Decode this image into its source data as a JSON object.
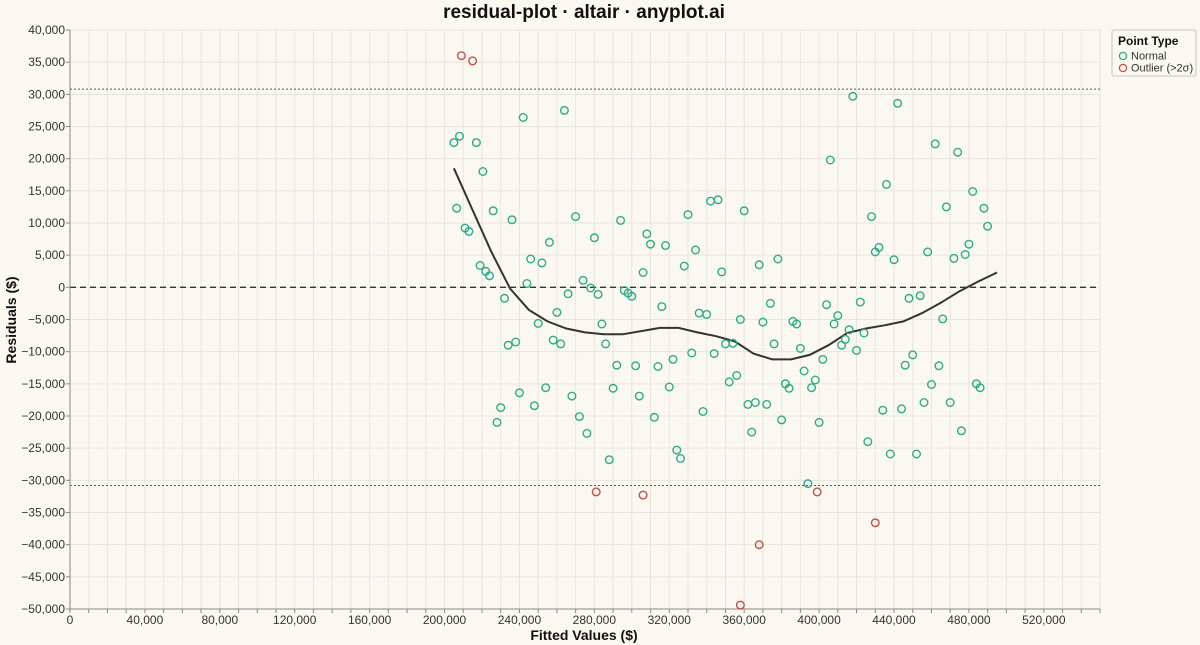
{
  "chart_data": {
    "type": "scatter",
    "title": "residual-plot · altair · anyplot.ai",
    "xlabel": "Fitted Values ($)",
    "ylabel": "Residuals ($)",
    "xlim": [
      0,
      550000
    ],
    "ylim": [
      -50000,
      40000
    ],
    "x_ticks": [
      0,
      40000,
      80000,
      120000,
      160000,
      200000,
      240000,
      280000,
      320000,
      360000,
      400000,
      440000,
      480000,
      520000
    ],
    "x_tick_labels": [
      "0",
      "40,000",
      "80,000",
      "120,000",
      "160,000",
      "200,000",
      "240,000",
      "280,000",
      "320,000",
      "360,000",
      "400,000",
      "440,000",
      "480,000",
      "520,000"
    ],
    "y_ticks": [
      40000,
      35000,
      30000,
      25000,
      20000,
      15000,
      10000,
      5000,
      0,
      -5000,
      -10000,
      -15000,
      -20000,
      -25000,
      -30000,
      -35000,
      -40000,
      -45000,
      -50000
    ],
    "y_tick_labels": [
      "40,000",
      "35,000",
      "30,000",
      "25,000",
      "20,000",
      "15,000",
      "10,000",
      "5,000",
      "0",
      "−5,000",
      "−10,000",
      "−15,000",
      "−20,000",
      "−25,000",
      "−30,000",
      "−35,000",
      "−40,000",
      "−45,000",
      "−50,000"
    ],
    "grid": true,
    "reference_lines": {
      "zero": 0,
      "upper_2sigma": 30800,
      "lower_2sigma": -30800
    },
    "legend": {
      "title": "Point Type",
      "position": "top-right",
      "entries": [
        {
          "label": "Normal",
          "color": "#2bab86"
        },
        {
          "label": "Outlier (>2σ)",
          "color": "#c0504d"
        }
      ]
    },
    "series": [
      {
        "name": "Normal",
        "color": "#2bab86",
        "points": [
          [
            205000,
            22500
          ],
          [
            206500,
            12300
          ],
          [
            208000,
            23500
          ],
          [
            211000,
            9200
          ],
          [
            213000,
            8700
          ],
          [
            217000,
            22500
          ],
          [
            219000,
            3400
          ],
          [
            220500,
            18000
          ],
          [
            222000,
            2500
          ],
          [
            224000,
            1800
          ],
          [
            226000,
            11900
          ],
          [
            228000,
            -21000
          ],
          [
            230000,
            -18700
          ],
          [
            232000,
            -1700
          ],
          [
            234000,
            -9000
          ],
          [
            236000,
            10500
          ],
          [
            238000,
            -8500
          ],
          [
            240000,
            -16400
          ],
          [
            242000,
            26400
          ],
          [
            244000,
            600
          ],
          [
            246000,
            4400
          ],
          [
            248000,
            -18400
          ],
          [
            250000,
            -5600
          ],
          [
            252000,
            3800
          ],
          [
            254000,
            -15600
          ],
          [
            256000,
            7000
          ],
          [
            258000,
            -8200
          ],
          [
            260000,
            -3900
          ],
          [
            262000,
            -8800
          ],
          [
            264000,
            27500
          ],
          [
            266000,
            -1000
          ],
          [
            268000,
            -16900
          ],
          [
            270000,
            11000
          ],
          [
            272000,
            -20100
          ],
          [
            274000,
            1100
          ],
          [
            276000,
            -22700
          ],
          [
            278000,
            -100
          ],
          [
            280000,
            7700
          ],
          [
            282000,
            -1100
          ],
          [
            284000,
            -5700
          ],
          [
            286000,
            -8800
          ],
          [
            288000,
            -26800
          ],
          [
            290000,
            -15700
          ],
          [
            292000,
            -12100
          ],
          [
            294000,
            10400
          ],
          [
            296000,
            -500
          ],
          [
            298000,
            -900
          ],
          [
            300000,
            -1400
          ],
          [
            302000,
            -12200
          ],
          [
            304000,
            -16900
          ],
          [
            306000,
            2300
          ],
          [
            308000,
            8300
          ],
          [
            310000,
            6700
          ],
          [
            312000,
            -20200
          ],
          [
            314000,
            -12300
          ],
          [
            316000,
            -3000
          ],
          [
            318000,
            6500
          ],
          [
            320000,
            -15500
          ],
          [
            322000,
            -11200
          ],
          [
            324000,
            -25300
          ],
          [
            326000,
            -26600
          ],
          [
            328000,
            3300
          ],
          [
            330000,
            11300
          ],
          [
            332000,
            -10200
          ],
          [
            334000,
            5800
          ],
          [
            336000,
            -4000
          ],
          [
            338000,
            -19300
          ],
          [
            340000,
            -4200
          ],
          [
            342000,
            13400
          ],
          [
            344000,
            -10300
          ],
          [
            346000,
            13600
          ],
          [
            348000,
            2400
          ],
          [
            350000,
            -8800
          ],
          [
            352000,
            -14700
          ],
          [
            354000,
            -8700
          ],
          [
            356000,
            -13700
          ],
          [
            358000,
            -5000
          ],
          [
            360000,
            11900
          ],
          [
            362000,
            -18200
          ],
          [
            364000,
            -22500
          ],
          [
            366000,
            -17900
          ],
          [
            368000,
            3500
          ],
          [
            370000,
            -5400
          ],
          [
            372000,
            -18200
          ],
          [
            374000,
            -2500
          ],
          [
            376000,
            -8800
          ],
          [
            378000,
            4400
          ],
          [
            380000,
            -20600
          ],
          [
            382000,
            -15000
          ],
          [
            384000,
            -15700
          ],
          [
            386000,
            -5300
          ],
          [
            388000,
            -5700
          ],
          [
            390000,
            -9500
          ],
          [
            392000,
            -13000
          ],
          [
            394000,
            -30500
          ],
          [
            396000,
            -15600
          ],
          [
            398000,
            -14400
          ],
          [
            400000,
            -21000
          ],
          [
            402000,
            -11200
          ],
          [
            404000,
            -2700
          ],
          [
            406000,
            19800
          ],
          [
            408000,
            -5700
          ],
          [
            410000,
            -4400
          ],
          [
            412000,
            -9000
          ],
          [
            414000,
            -8100
          ],
          [
            416000,
            -6600
          ],
          [
            418000,
            29700
          ],
          [
            420000,
            -9800
          ],
          [
            422000,
            -2300
          ],
          [
            424000,
            -7100
          ],
          [
            426000,
            -24000
          ],
          [
            428000,
            11000
          ],
          [
            430000,
            5500
          ],
          [
            432000,
            6200
          ],
          [
            434000,
            -19100
          ],
          [
            436000,
            16000
          ],
          [
            438000,
            -25900
          ],
          [
            440000,
            4300
          ],
          [
            442000,
            28600
          ],
          [
            444000,
            -18900
          ],
          [
            446000,
            -12100
          ],
          [
            448000,
            -1700
          ],
          [
            450000,
            -10500
          ],
          [
            452000,
            -25900
          ],
          [
            454000,
            -1300
          ],
          [
            456000,
            -17900
          ],
          [
            458000,
            5500
          ],
          [
            460000,
            -15100
          ],
          [
            462000,
            22300
          ],
          [
            464000,
            -12200
          ],
          [
            466000,
            -4900
          ],
          [
            468000,
            12500
          ],
          [
            470000,
            -17900
          ],
          [
            472000,
            4500
          ],
          [
            474000,
            21000
          ],
          [
            476000,
            -22300
          ],
          [
            478000,
            5100
          ],
          [
            480000,
            6700
          ],
          [
            482000,
            14900
          ],
          [
            484000,
            -15000
          ],
          [
            486000,
            -15600
          ],
          [
            488000,
            12300
          ],
          [
            490000,
            9500
          ]
        ]
      },
      {
        "name": "Outlier (>2σ)",
        "color": "#c0504d",
        "points": [
          [
            209000,
            36000
          ],
          [
            215000,
            35200
          ],
          [
            281000,
            -31800
          ],
          [
            306000,
            -32300
          ],
          [
            358000,
            -49400
          ],
          [
            368000,
            -40000
          ],
          [
            399000,
            -31800
          ],
          [
            430000,
            -36600
          ]
        ]
      }
    ],
    "lowess": [
      [
        205000,
        18500
      ],
      [
        215000,
        12000
      ],
      [
        225000,
        5500
      ],
      [
        235000,
        -200
      ],
      [
        245000,
        -3500
      ],
      [
        255000,
        -5300
      ],
      [
        265000,
        -6400
      ],
      [
        275000,
        -7000
      ],
      [
        285000,
        -7300
      ],
      [
        295000,
        -7300
      ],
      [
        305000,
        -6800
      ],
      [
        315000,
        -6300
      ],
      [
        325000,
        -6300
      ],
      [
        335000,
        -7000
      ],
      [
        345000,
        -7600
      ],
      [
        355000,
        -8400
      ],
      [
        365000,
        -10300
      ],
      [
        375000,
        -11200
      ],
      [
        385000,
        -11200
      ],
      [
        395000,
        -10500
      ],
      [
        405000,
        -9000
      ],
      [
        415000,
        -7100
      ],
      [
        425000,
        -6400
      ],
      [
        435000,
        -5900
      ],
      [
        445000,
        -5300
      ],
      [
        455000,
        -4000
      ],
      [
        465000,
        -2400
      ],
      [
        475000,
        -600
      ],
      [
        485000,
        900
      ],
      [
        495000,
        2300
      ]
    ]
  }
}
